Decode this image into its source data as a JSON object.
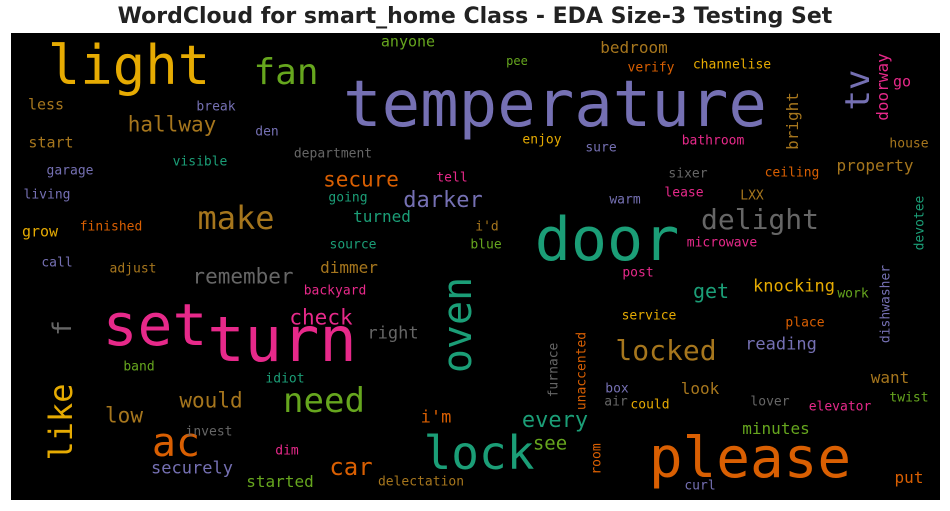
{
  "title": "WordCloud for smart_home Class - EDA Size-3 Testing Set",
  "colors": {
    "background": "#000000",
    "palette": [
      "#1b9e77",
      "#d95f02",
      "#7570b3",
      "#e7298a",
      "#66a61e",
      "#e6ab02",
      "#a6761d",
      "#666666"
    ]
  },
  "chart_data": {
    "type": "wordcloud",
    "title": "WordCloud for smart_home Class - EDA Size-3 Testing Set",
    "words": [
      {
        "text": "temperature",
        "color": "#7570b3"
      },
      {
        "text": "door",
        "color": "#1b9e77"
      },
      {
        "text": "turn",
        "color": "#e7298a"
      },
      {
        "text": "please",
        "color": "#d95f02"
      },
      {
        "text": "set",
        "color": "#e7298a"
      },
      {
        "text": "light",
        "color": "#e6ab02"
      },
      {
        "text": "lock",
        "color": "#1b9e77"
      },
      {
        "text": "oven",
        "color": "#1b9e77"
      },
      {
        "text": "ac",
        "color": "#d95f02"
      },
      {
        "text": "fan",
        "color": "#66a61e"
      },
      {
        "text": "need",
        "color": "#66a61e"
      },
      {
        "text": "tv",
        "color": "#7570b3"
      },
      {
        "text": "make",
        "color": "#a6761d"
      },
      {
        "text": "like",
        "color": "#e6ab02"
      },
      {
        "text": "locked",
        "color": "#a6761d"
      },
      {
        "text": "delight",
        "color": "#666666"
      },
      {
        "text": "car",
        "color": "#d95f02"
      },
      {
        "text": "darker",
        "color": "#7570b3"
      },
      {
        "text": "every",
        "color": "#1b9e77"
      },
      {
        "text": "would",
        "color": "#a6761d"
      },
      {
        "text": "hallway",
        "color": "#a6761d"
      },
      {
        "text": "secure",
        "color": "#d95f02"
      },
      {
        "text": "remember",
        "color": "#666666"
      },
      {
        "text": "check",
        "color": "#e7298a"
      },
      {
        "text": "low",
        "color": "#a6761d"
      },
      {
        "text": "knocking",
        "color": "#e6ab02"
      },
      {
        "text": "get",
        "color": "#1b9e77"
      },
      {
        "text": "see",
        "color": "#66a61e"
      },
      {
        "text": "securely",
        "color": "#7570b3"
      },
      {
        "text": "f",
        "color": "#666666"
      },
      {
        "text": "bright",
        "color": "#a6761d"
      },
      {
        "text": "doorway",
        "color": "#e7298a"
      },
      {
        "text": "bedroom",
        "color": "#a6761d"
      },
      {
        "text": "property",
        "color": "#a6761d"
      },
      {
        "text": "turned",
        "color": "#1b9e77"
      },
      {
        "text": "dimmer",
        "color": "#a6761d"
      },
      {
        "text": "reading",
        "color": "#7570b3"
      },
      {
        "text": "right",
        "color": "#666666"
      },
      {
        "text": "i'm",
        "color": "#d95f02"
      },
      {
        "text": "look",
        "color": "#a6761d"
      },
      {
        "text": "want",
        "color": "#a6761d"
      },
      {
        "text": "minutes",
        "color": "#66a61e"
      },
      {
        "text": "started",
        "color": "#66a61e"
      },
      {
        "text": "put",
        "color": "#d95f02"
      },
      {
        "text": "go",
        "color": "#e7298a"
      },
      {
        "text": "start",
        "color": "#a6761d"
      },
      {
        "text": "less",
        "color": "#a6761d"
      },
      {
        "text": "grow",
        "color": "#e6ab02"
      },
      {
        "text": "anyone",
        "color": "#66a61e"
      },
      {
        "text": "pee",
        "color": "#66a61e"
      },
      {
        "text": "verify",
        "color": "#d95f02"
      },
      {
        "text": "channelise",
        "color": "#e6ab02"
      },
      {
        "text": "break",
        "color": "#7570b3"
      },
      {
        "text": "den",
        "color": "#7570b3"
      },
      {
        "text": "department",
        "color": "#666666"
      },
      {
        "text": "enjoy",
        "color": "#e6ab02"
      },
      {
        "text": "sure",
        "color": "#7570b3"
      },
      {
        "text": "bathroom",
        "color": "#e7298a"
      },
      {
        "text": "house",
        "color": "#a6761d"
      },
      {
        "text": "garage",
        "color": "#7570b3"
      },
      {
        "text": "visible",
        "color": "#1b9e77"
      },
      {
        "text": "tell",
        "color": "#e7298a"
      },
      {
        "text": "sixer",
        "color": "#666666"
      },
      {
        "text": "ceiling",
        "color": "#d95f02"
      },
      {
        "text": "living",
        "color": "#7570b3"
      },
      {
        "text": "going",
        "color": "#1b9e77"
      },
      {
        "text": "lease",
        "color": "#e7298a"
      },
      {
        "text": "LXX",
        "color": "#a6761d"
      },
      {
        "text": "warm",
        "color": "#7570b3"
      },
      {
        "text": "devotee",
        "color": "#1b9e77"
      },
      {
        "text": "finished",
        "color": "#d95f02"
      },
      {
        "text": "i'd",
        "color": "#a6761d"
      },
      {
        "text": "source",
        "color": "#1b9e77"
      },
      {
        "text": "blue",
        "color": "#66a61e"
      },
      {
        "text": "microwave",
        "color": "#e7298a"
      },
      {
        "text": "call",
        "color": "#7570b3"
      },
      {
        "text": "adjust",
        "color": "#a6761d"
      },
      {
        "text": "post",
        "color": "#e7298a"
      },
      {
        "text": "backyard",
        "color": "#e7298a"
      },
      {
        "text": "work",
        "color": "#66a61e"
      },
      {
        "text": "dishwasher",
        "color": "#7570b3"
      },
      {
        "text": "service",
        "color": "#e6ab02"
      },
      {
        "text": "place",
        "color": "#d95f02"
      },
      {
        "text": "band",
        "color": "#66a61e"
      },
      {
        "text": "idiot",
        "color": "#1b9e77"
      },
      {
        "text": "furnace",
        "color": "#666666"
      },
      {
        "text": "unaccented",
        "color": "#d95f02"
      },
      {
        "text": "box",
        "color": "#7570b3"
      },
      {
        "text": "air",
        "color": "#666666"
      },
      {
        "text": "could",
        "color": "#e6ab02"
      },
      {
        "text": "lover",
        "color": "#666666"
      },
      {
        "text": "twist",
        "color": "#66a61e"
      },
      {
        "text": "elevator",
        "color": "#e7298a"
      },
      {
        "text": "invest",
        "color": "#666666"
      },
      {
        "text": "dim",
        "color": "#e7298a"
      },
      {
        "text": "room",
        "color": "#d95f02"
      },
      {
        "text": "delectation",
        "color": "#a6761d"
      },
      {
        "text": "curl",
        "color": "#7570b3"
      }
    ]
  }
}
